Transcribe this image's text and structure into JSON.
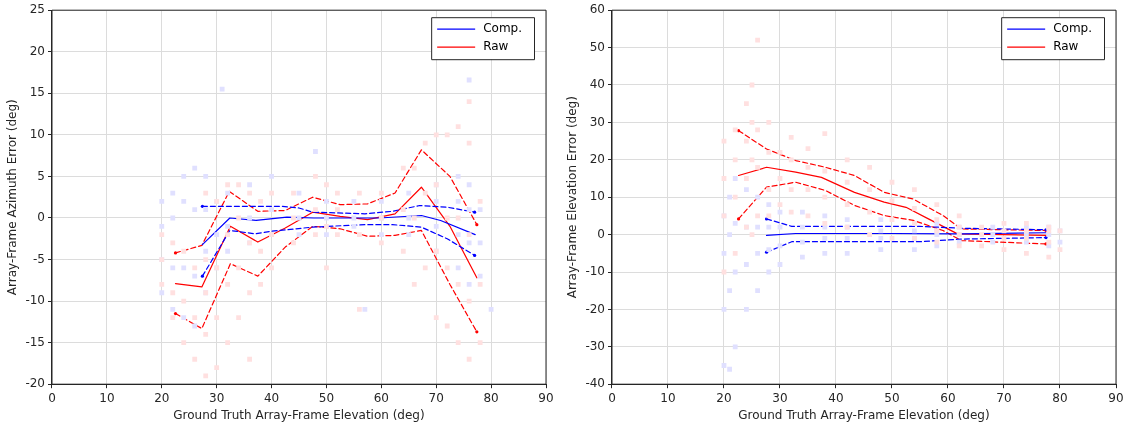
{
  "chart_data": [
    {
      "type": "line",
      "xlabel": "Ground Truth Array-Frame Elevation (deg)",
      "ylabel": "Array-Frame Azimuth Error (deg)",
      "xlim": [
        0,
        90
      ],
      "ylim": [
        -20,
        25
      ],
      "xticks": [
        0,
        10,
        20,
        30,
        40,
        50,
        60,
        70,
        80,
        90
      ],
      "yticks": [
        -20,
        -15,
        -10,
        -5,
        0,
        5,
        10,
        15,
        20,
        25
      ],
      "grid": true,
      "legend": "top right",
      "series": [
        {
          "type": "scatter",
          "marker": "square",
          "color": "#ffe0e0",
          "x": [
            20,
            20,
            20,
            22,
            22,
            22,
            24,
            24,
            24,
            26,
            26,
            26,
            28,
            28,
            28,
            28,
            28,
            30,
            30,
            30,
            30,
            32,
            32,
            32,
            32,
            34,
            34,
            34,
            34,
            36,
            36,
            36,
            36,
            38,
            38,
            38,
            40,
            40,
            40,
            44,
            44,
            44,
            48,
            48,
            48,
            50,
            50,
            50,
            52,
            52,
            52,
            56,
            56,
            56,
            60,
            60,
            60,
            64,
            64,
            64,
            66,
            66,
            66,
            68,
            68,
            68,
            70,
            70,
            70,
            70,
            72,
            72,
            72,
            72,
            74,
            74,
            74,
            74,
            76,
            76,
            76,
            76,
            76,
            78,
            78,
            78
          ],
          "values": [
            -8,
            -5,
            -2,
            -12,
            -9,
            -3,
            -15,
            -10,
            -4,
            -17,
            -12,
            -6,
            -19,
            -14,
            -9,
            -5,
            3,
            -18,
            -12,
            -6,
            2,
            -15,
            -8,
            -2,
            4,
            -12,
            -6,
            0,
            4,
            -17,
            -9,
            -3,
            3,
            -8,
            -4,
            2,
            -6,
            -2,
            3,
            -3,
            0,
            3,
            -2,
            1,
            5,
            -6,
            -1,
            4,
            -2,
            1,
            3,
            -11,
            -2,
            3,
            -3,
            0,
            3,
            -4,
            1,
            6,
            -8,
            0,
            6,
            -6,
            3,
            9,
            -12,
            -4,
            4,
            10,
            -13,
            -6,
            0,
            10,
            -15,
            -8,
            0,
            11,
            -17,
            -10,
            -2,
            9,
            14,
            -15,
            -8,
            2
          ]
        },
        {
          "type": "scatter",
          "marker": "square",
          "color": "#e0e0ff",
          "x": [
            20,
            20,
            20,
            20,
            22,
            22,
            22,
            22,
            24,
            24,
            24,
            24,
            26,
            26,
            26,
            26,
            28,
            28,
            28,
            28,
            30,
            30,
            30,
            32,
            32,
            32,
            36,
            36,
            36,
            40,
            40,
            40,
            45,
            45,
            45,
            50,
            50,
            50,
            55,
            55,
            55,
            60,
            60,
            60,
            65,
            65,
            65,
            70,
            70,
            70,
            70,
            74,
            74,
            74,
            74,
            76,
            76,
            76,
            76,
            76,
            78,
            78,
            78,
            80,
            57,
            48,
            31
          ],
          "values": [
            -9,
            -5,
            -1,
            2,
            -11,
            -6,
            0,
            3,
            -12,
            -6,
            2,
            5,
            -13,
            -7,
            1,
            6,
            -9,
            -4,
            1,
            5,
            -6,
            -2,
            2,
            -4,
            -1,
            3,
            -3,
            0,
            4,
            -2,
            1,
            5,
            -2,
            0,
            3,
            -2,
            0,
            2,
            -1,
            0,
            2,
            -2,
            0,
            2,
            -2,
            0,
            3,
            -4,
            -1,
            2,
            4,
            -6,
            -2,
            2,
            5,
            -8,
            -3,
            1,
            4,
            16.6,
            -7,
            -3,
            1,
            -11,
            -11,
            8,
            15.5
          ]
        },
        {
          "name": "Comp.",
          "color": "#0000ff",
          "line_style": "solid",
          "x": [
            27.4,
            32.4,
            37.2,
            42.8,
            47.7,
            59.6,
            67.3,
            70.8,
            77.1
          ],
          "values": [
            -3.2,
            0,
            -0.3,
            0.1,
            0,
            0,
            0.3,
            -0.3,
            -2
          ]
        },
        {
          "color": "#0000ff",
          "line_style": "dashed",
          "x": [
            27.4,
            32.5,
            42,
            45,
            47.5,
            57,
            62,
            67,
            72,
            77
          ],
          "values": [
            1.4,
            1.4,
            1.4,
            1.2,
            0.7,
            0.5,
            0.8,
            1.5,
            1.3,
            0.7
          ]
        },
        {
          "color": "#0000ff",
          "line_style": "dashed",
          "x": [
            27.4,
            32.4,
            37,
            40,
            47.5,
            57,
            62,
            67.3,
            72,
            77
          ],
          "values": [
            -7,
            -1.5,
            -1.9,
            -1.6,
            -1.1,
            -0.8,
            -0.8,
            -1.1,
            -2.5,
            -4.5
          ]
        },
        {
          "name": "Raw",
          "color": "#ff0000",
          "line_style": "solid",
          "x": [
            22.5,
            27.3,
            32.5,
            37.5,
            42.5,
            47.5,
            52.5,
            57.5,
            62.5,
            67.3,
            72.5,
            77.4
          ],
          "values": [
            -7.9,
            -8.3,
            -1,
            -2.9,
            -1.2,
            0.7,
            0.2,
            -0.2,
            0.5,
            3.7,
            -1,
            -7.2
          ]
        },
        {
          "color": "#ff0000",
          "line_style": "dashed",
          "x": [
            22.5,
            27.3,
            32.3,
            37.5,
            42.5,
            47.5,
            52.5,
            57.5,
            62.5,
            67.3,
            72.5,
            77.4
          ],
          "values": [
            -4.2,
            -3.3,
            3.2,
            0.8,
            0.9,
            2.5,
            1.6,
            1.7,
            3,
            8.2,
            5,
            -0.8
          ]
        },
        {
          "color": "#ff0000",
          "line_style": "dashed",
          "x": [
            22.5,
            27.3,
            32.5,
            37.5,
            42.5,
            47.5,
            52.5,
            57.5,
            62.5,
            67.3,
            72.5,
            77.4
          ],
          "values": [
            -11.5,
            -13.3,
            -5.5,
            -7,
            -3.5,
            -1,
            -1.3,
            -2.2,
            -2.1,
            -1.5,
            -8,
            -13.7
          ]
        }
      ]
    },
    {
      "type": "line",
      "xlabel": "Ground Truth Array-Frame Elevation (deg)",
      "ylabel": "Array-Frame Elevation Error (deg)",
      "xlim": [
        0,
        90
      ],
      "ylim": [
        -40,
        60
      ],
      "xticks": [
        0,
        10,
        20,
        30,
        40,
        50,
        60,
        70,
        80,
        90
      ],
      "yticks": [
        -40,
        -30,
        -20,
        -10,
        0,
        10,
        20,
        30,
        40,
        50,
        60
      ],
      "grid": true,
      "legend": "top right",
      "series": [
        {
          "type": "scatter",
          "marker": "square",
          "color": "#ffe0e0",
          "x": [
            20,
            20,
            20,
            20,
            22,
            22,
            22,
            22,
            24,
            24,
            24,
            24,
            25,
            25,
            25,
            25,
            26,
            26,
            26,
            26,
            28,
            28,
            28,
            28,
            30,
            30,
            30,
            32,
            32,
            32,
            32,
            35,
            35,
            35,
            35,
            38,
            38,
            38,
            38,
            42,
            42,
            42,
            42,
            46,
            46,
            46,
            46,
            50,
            50,
            50,
            50,
            54,
            54,
            54,
            54,
            58,
            58,
            58,
            58,
            62,
            62,
            62,
            62,
            66,
            66,
            66,
            70,
            70,
            70,
            70,
            74,
            74,
            74,
            74,
            78,
            78,
            78,
            78,
            80,
            80
          ],
          "values": [
            -10,
            5,
            15,
            25,
            -5,
            10,
            20,
            28,
            2,
            15,
            25,
            35,
            0,
            20,
            30,
            40,
            5,
            18,
            28,
            52,
            5,
            12,
            22,
            30,
            8,
            15,
            22,
            6,
            12,
            20,
            26,
            5,
            12,
            18,
            23,
            3,
            10,
            17,
            27,
            2,
            8,
            14,
            20,
            0,
            6,
            12,
            18,
            -1,
            4,
            9,
            14,
            -1,
            3,
            7,
            12,
            -2,
            1,
            4,
            8,
            -3,
            0,
            2,
            5,
            -3,
            0,
            2,
            -4,
            -1,
            1,
            3,
            -5,
            -1,
            1,
            3,
            -6,
            -2,
            1,
            2,
            -4,
            1
          ]
        },
        {
          "type": "scatter",
          "marker": "square",
          "color": "#e0e0ff",
          "x": [
            20,
            20,
            20,
            20,
            21,
            21,
            21,
            21,
            22,
            22,
            22,
            22,
            24,
            24,
            24,
            24,
            26,
            26,
            26,
            26,
            28,
            28,
            28,
            28,
            30,
            30,
            30,
            30,
            34,
            34,
            34,
            34,
            38,
            38,
            38,
            38,
            42,
            42,
            42,
            42,
            48,
            48,
            48,
            48,
            54,
            54,
            54,
            54,
            58,
            58,
            58,
            58,
            62,
            62,
            62,
            68,
            68,
            68,
            74,
            74,
            74,
            78,
            78,
            78,
            80,
            80
          ],
          "values": [
            -35,
            -20,
            -5,
            5,
            -36,
            -15,
            0,
            10,
            -30,
            -10,
            3,
            15,
            -20,
            -8,
            2,
            12,
            -15,
            -5,
            2,
            10,
            -10,
            -4,
            2,
            8,
            -8,
            -3,
            2,
            6,
            -6,
            -2,
            2,
            6,
            -5,
            -1,
            2,
            5,
            -5,
            -1,
            2,
            4,
            -4,
            -1,
            1,
            4,
            -4,
            -1,
            1,
            3,
            -3,
            0,
            1,
            3,
            -2,
            0,
            2,
            -2,
            0,
            2,
            -2,
            0,
            2,
            -3,
            0,
            2,
            -2,
            1
          ]
        },
        {
          "name": "Comp.",
          "color": "#0000ff",
          "line_style": "solid",
          "x": [
            27.6,
            32.8,
            50,
            62.4,
            77.5
          ],
          "values": [
            -0.2,
            0.3,
            0.3,
            0.2,
            0.5
          ]
        },
        {
          "color": "#0000ff",
          "line_style": "dashed",
          "x": [
            27.6,
            32.1,
            55,
            62.4,
            77.5
          ],
          "values": [
            4.2,
            2.2,
            2.2,
            1.7,
            1.3
          ]
        },
        {
          "color": "#0000ff",
          "line_style": "dashed",
          "x": [
            27.6,
            32.1,
            55,
            62.4,
            77.5
          ],
          "values": [
            -4.7,
            -1.9,
            -1.9,
            -1.2,
            -0.8
          ]
        },
        {
          "name": "Raw",
          "color": "#ff0000",
          "line_style": "solid",
          "x": [
            22.6,
            27.6,
            32.8,
            37.4,
            43.3,
            48.6,
            52.5,
            56.5,
            61.7,
            77.5
          ],
          "values": [
            15.8,
            18,
            16.7,
            15.3,
            11.3,
            8.7,
            7.3,
            4.2,
            0.2,
            -0.2
          ]
        },
        {
          "color": "#ff0000",
          "line_style": "dashed",
          "x": [
            22.6,
            27.6,
            32.8,
            38.1,
            43.3,
            48.6,
            53.8,
            59.1,
            62.4,
            77.5
          ],
          "values": [
            27.8,
            22.9,
            19.8,
            18,
            15.8,
            11.3,
            9.5,
            5.1,
            1.5,
            1.1
          ]
        },
        {
          "color": "#ff0000",
          "line_style": "dashed",
          "x": [
            22.6,
            27.6,
            32.8,
            38.1,
            43.3,
            48.6,
            53.8,
            59.1,
            62.4,
            77.5
          ],
          "values": [
            4.2,
            12.7,
            14,
            11.8,
            7.8,
            5.1,
            3.8,
            1.1,
            -1.6,
            -2.5
          ]
        }
      ]
    }
  ]
}
